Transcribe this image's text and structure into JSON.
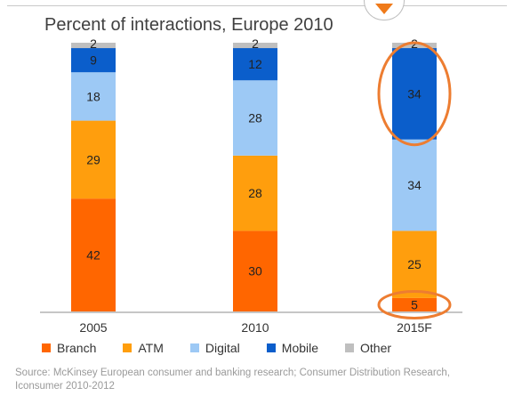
{
  "header": {
    "title": "Percent of interactions, Europe 2010"
  },
  "chart_data": {
    "type": "bar",
    "stacked": true,
    "title": "Percent of interactions, Europe 2010",
    "xlabel": "",
    "ylabel": "",
    "ylim": [
      0,
      100
    ],
    "grid": false,
    "legend_position": "bottom",
    "categories": [
      "2005",
      "2010",
      "2015F"
    ],
    "series": [
      {
        "name": "Branch",
        "color": "#ff6600",
        "values": [
          42,
          30,
          5
        ]
      },
      {
        "name": "ATM",
        "color": "#ff9e0d",
        "values": [
          29,
          28,
          25
        ]
      },
      {
        "name": "Digital",
        "color": "#9dc9f5",
        "values": [
          18,
          28,
          34
        ]
      },
      {
        "name": "Mobile",
        "color": "#0b5ecb",
        "values": [
          9,
          12,
          34
        ]
      },
      {
        "name": "Other",
        "color": "#bfbfbf",
        "values": [
          2,
          2,
          2
        ]
      }
    ],
    "annotations": [
      {
        "type": "ellipse-highlight",
        "category": "2015F",
        "series": "Mobile",
        "color": "#ed7d31"
      },
      {
        "type": "ellipse-highlight",
        "category": "2015F",
        "series": "Branch",
        "color": "#ed7d31"
      }
    ]
  },
  "source": {
    "text": "Source: McKinsey European consumer and banking research; Consumer Distribution Research, Iconsumer 2010-2012"
  }
}
